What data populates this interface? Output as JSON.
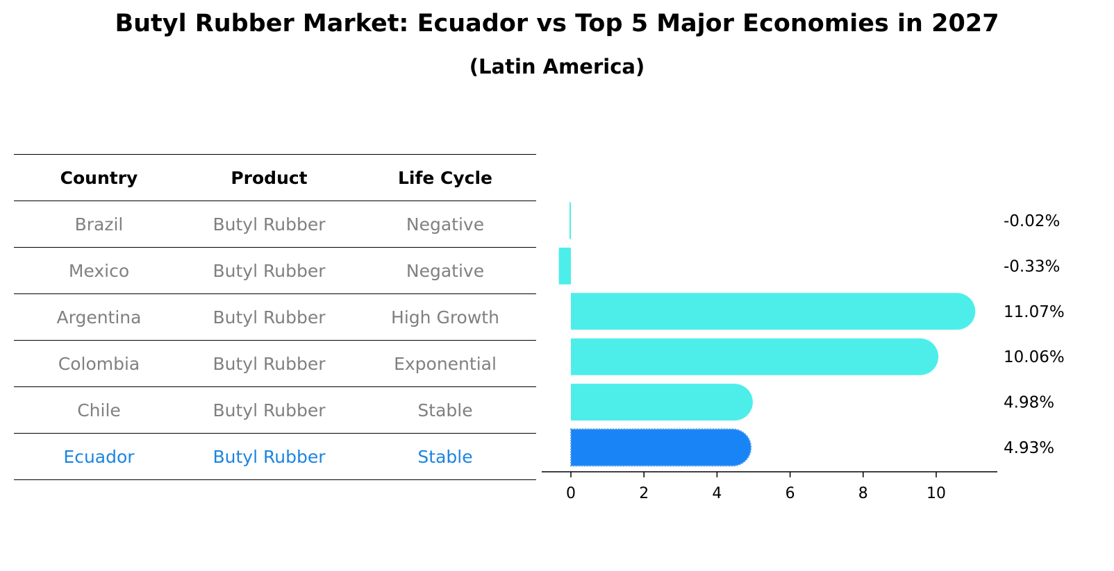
{
  "title": "Butyl Rubber Market: Ecuador vs Top 5 Major Economies in 2027",
  "subtitle": "(Latin America)",
  "table": {
    "headers": [
      "Country",
      "Product",
      "Life Cycle"
    ],
    "rows": [
      {
        "country": "Brazil",
        "product": "Butyl Rubber",
        "life_cycle": "Negative",
        "highlight": false
      },
      {
        "country": "Mexico",
        "product": "Butyl Rubber",
        "life_cycle": "Negative",
        "highlight": false
      },
      {
        "country": "Argentina",
        "product": "Butyl Rubber",
        "life_cycle": "High Growth",
        "highlight": false
      },
      {
        "country": "Colombia",
        "product": "Butyl Rubber",
        "life_cycle": "Exponential",
        "highlight": false
      },
      {
        "country": "Chile",
        "product": "Butyl Rubber",
        "life_cycle": "Stable",
        "highlight": false
      },
      {
        "country": "Ecuador",
        "product": "Butyl Rubber",
        "life_cycle": "Stable",
        "highlight": true
      }
    ]
  },
  "colors": {
    "bar": "#4deeea",
    "highlight_bar": "#1984f5",
    "table_text": "#808080",
    "highlight_text": "#1b84e0"
  },
  "chart_data": {
    "type": "bar",
    "orientation": "horizontal",
    "categories": [
      "Brazil",
      "Mexico",
      "Argentina",
      "Colombia",
      "Chile",
      "Ecuador"
    ],
    "values": [
      -0.02,
      -0.33,
      11.07,
      10.06,
      4.98,
      4.93
    ],
    "data_labels": [
      "-0.02%",
      "-0.33%",
      "11.07%",
      "10.06%",
      "4.98%",
      "4.93%"
    ],
    "highlight_category": "Ecuador",
    "xlim": [
      -0.9,
      11.6
    ],
    "xticks": [
      0,
      2,
      4,
      6,
      8,
      10
    ],
    "xlabel": "",
    "ylabel": "",
    "grid": false,
    "legend": "none"
  }
}
